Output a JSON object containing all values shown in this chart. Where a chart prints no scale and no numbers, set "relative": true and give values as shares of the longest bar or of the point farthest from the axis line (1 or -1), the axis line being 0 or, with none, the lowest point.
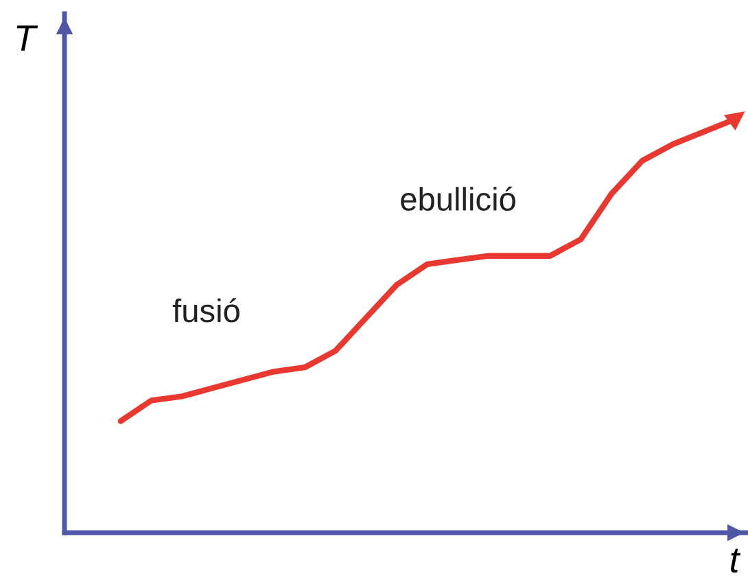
{
  "chart_data": {
    "type": "line",
    "relative": true,
    "xlabel": "t",
    "ylabel": "T",
    "categories": [
      null,
      null,
      null,
      null,
      null,
      null,
      null,
      null,
      null,
      null,
      null,
      null,
      null,
      null,
      null,
      null,
      null,
      null,
      null,
      null,
      null
    ],
    "series": [
      {
        "color": "#e8382f",
        "values": [
          0.27,
          0.32,
          0.33,
          0.35,
          0.37,
          0.39,
          0.4,
          0.44,
          0.52,
          0.6,
          0.65,
          0.66,
          0.67,
          0.67,
          0.67,
          0.71,
          0.82,
          0.9,
          0.94,
          0.97,
          1.0
        ]
      }
    ],
    "annotations": [
      "fusió",
      "ebullició"
    ],
    "legend": false,
    "marker": "none",
    "line_style": "solid"
  }
}
